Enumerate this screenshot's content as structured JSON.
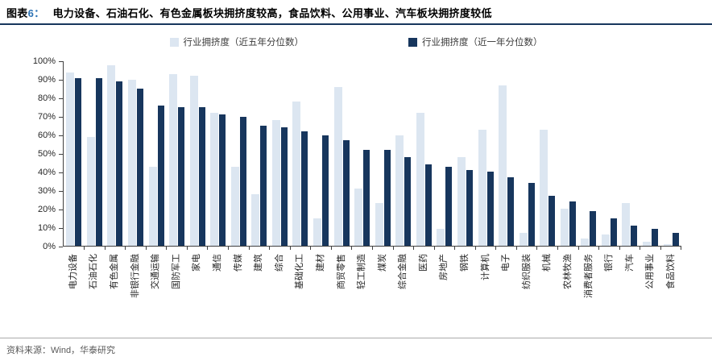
{
  "figure": {
    "label_prefix": "图表",
    "label_number": "6：",
    "title": "电力设备、石油石化、有色金属板块拥挤度较高，食品饮料、公用事业、汽车板块拥挤度较低",
    "source": "资料来源：Wind，华泰研究"
  },
  "colors": {
    "accent_number": "#2E74B5",
    "bar_5yr": "#DCE6F1",
    "bar_1yr": "#17365D",
    "title_rule": "#17365D",
    "axis": "#404040",
    "source_text": "#595959"
  },
  "chart_data": {
    "type": "bar",
    "title": "电力设备、石油石化、有色金属板块拥挤度较高，食品饮料、公用事业、汽车板块拥挤度较低",
    "legend_position": "top",
    "grid": false,
    "ylim": [
      0,
      100
    ],
    "ytick_step": 10,
    "ytick_labels": [
      "0%",
      "10%",
      "20%",
      "30%",
      "40%",
      "50%",
      "60%",
      "70%",
      "80%",
      "90%",
      "100%"
    ],
    "categories": [
      "电力设备",
      "石油石化",
      "有色金属",
      "非银行金融",
      "交通运输",
      "国防军工",
      "家电",
      "通信",
      "传媒",
      "建筑",
      "综合",
      "基础化工",
      "建材",
      "商贸零售",
      "轻工制造",
      "煤炭",
      "综合金融",
      "医药",
      "房地产",
      "钢铁",
      "计算机",
      "电子",
      "纺织服装",
      "机械",
      "农林牧渔",
      "消费者服务",
      "银行",
      "汽车",
      "公用事业",
      "食品饮料"
    ],
    "series": [
      {
        "name": "行业拥挤度（近五年分位数）",
        "color": "#DCE6F1",
        "values": [
          94,
          59,
          98,
          90,
          43,
          93,
          92,
          72,
          43,
          28,
          68,
          78,
          15,
          86,
          31,
          23,
          60,
          72,
          9,
          48,
          63,
          87,
          7,
          63,
          20,
          4,
          6,
          23,
          2,
          1
        ]
      },
      {
        "name": "行业拥挤度（近一年分位数）",
        "color": "#17365D",
        "values": [
          91,
          91,
          89,
          85,
          76,
          75,
          75,
          71,
          70,
          65,
          64,
          62,
          60,
          57,
          52,
          52,
          48,
          44,
          43,
          41,
          40,
          37,
          34,
          27,
          24,
          19,
          15,
          11,
          9,
          7
        ]
      }
    ]
  }
}
